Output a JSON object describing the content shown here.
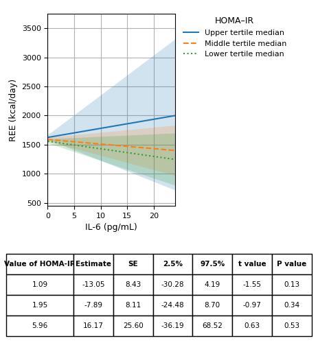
{
  "chart_data": {
    "type": "line",
    "xlabel": "IL-6 (pg/mL)",
    "ylabel": "REE (kcal/day)",
    "x": [
      0,
      24
    ],
    "xlim": [
      0,
      24
    ],
    "xticks": [
      0,
      5,
      10,
      15,
      20
    ],
    "ylim": [
      450,
      3750
    ],
    "yticks": [
      500,
      1000,
      1500,
      2000,
      2500,
      3000,
      3500
    ],
    "grid": true,
    "legend": "upper left",
    "legend_title": "HOMA–IR",
    "series": [
      {
        "name": "Upper tertile median",
        "line_style": "solid",
        "values": [
          1625,
          1999.4
        ],
        "ci_low": [
          1590,
          721.44
        ],
        "ci_high": [
          1670,
          3314.48
        ]
      },
      {
        "name": "Middle tertile median",
        "line_style": "dashed",
        "values": [
          1590,
          1400.64
        ],
        "ci_low": [
          1560,
          972.48
        ],
        "ci_high": [
          1625,
          1833.8
        ]
      },
      {
        "name": "Lower tertile median",
        "line_style": "dotted",
        "values": [
          1560,
          1246.8
        ],
        "ci_low": [
          1530,
          803.28
        ],
        "ci_high": [
          1600,
          1700.56
        ]
      }
    ],
    "table": {
      "columns": [
        "Value of HOMA-IR",
        "Estimate",
        "SE",
        "2.5%",
        "97.5%",
        "t value",
        "P value"
      ],
      "rows": [
        [
          "1.09",
          "-13.05",
          "8.43",
          "-30.28",
          "4.19",
          "-1.55",
          "0.13"
        ],
        [
          "1.95",
          "-7.89",
          "8.11",
          "-24.48",
          "8.70",
          "-0.97",
          "0.34"
        ],
        [
          "5.96",
          "16.17",
          "25.60",
          "-36.19",
          "68.52",
          "0.63",
          "0.53"
        ]
      ]
    }
  }
}
